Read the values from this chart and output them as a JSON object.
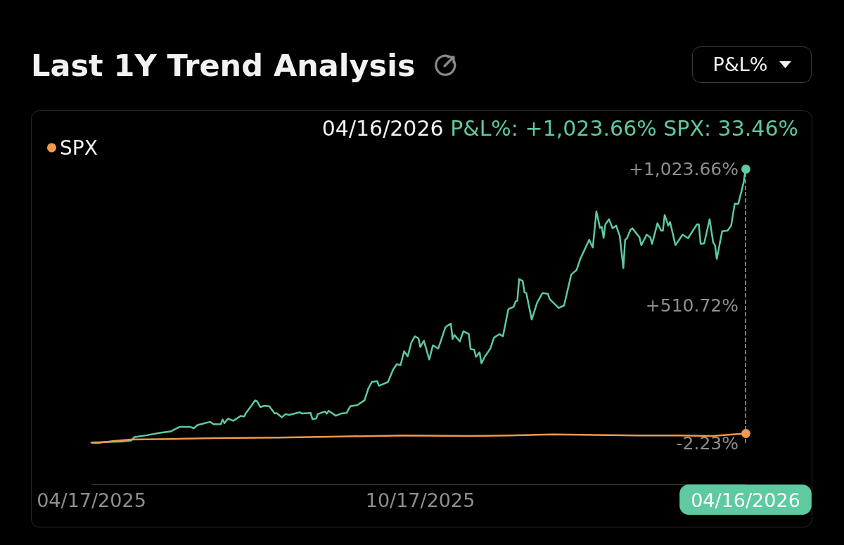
{
  "chart_data": {
    "type": "line",
    "title": "Last 1Y Trend Analysis",
    "annotations": [
      "P&L%",
      "04/16/2026",
      "P&L%: +1,023.66% SPX: 33.46%"
    ],
    "xlim": [
      "2025-04-17",
      "2026-04-16"
    ],
    "xticks": [
      {
        "value": "2025-04-17",
        "label": "04/17/2025"
      },
      {
        "value": "2025-10-17",
        "label": "10/17/2025"
      },
      {
        "value": "2026-04-16",
        "label": "04/16/2026"
      }
    ],
    "ylim": [
      -2.23,
      1023.66
    ],
    "yticks": [
      {
        "value": -2.23,
        "label": "-2.23%"
      },
      {
        "value": 510.72,
        "label": "+510.72%"
      },
      {
        "value": 1023.66,
        "label": "+1,023.66%"
      }
    ],
    "legend": "top left",
    "ref_lines": [
      {
        "axis": "x",
        "value": "2026-04-16",
        "color": "#5fc9a0",
        "line_style": "dashed"
      }
    ],
    "series": [
      {
        "color": "#5fc9a0",
        "x": [
          "2025-04-17",
          "2025-05-05",
          "2025-05-09",
          "2025-05-11",
          "2025-05-18",
          "2025-05-25",
          "2025-05-31",
          "2025-06-05",
          "2025-06-11",
          "2025-06-13",
          "2025-06-15",
          "2025-06-22",
          "2025-06-24",
          "2025-06-28",
          "2025-06-29",
          "2025-06-30",
          "2025-07-02",
          "2025-07-05",
          "2025-07-09",
          "2025-07-11",
          "2025-07-12",
          "2025-07-15",
          "2025-07-17",
          "2025-07-18",
          "2025-07-20",
          "2025-07-22",
          "2025-07-25",
          "2025-07-28",
          "2025-07-29",
          "2025-08-01",
          "2025-08-03",
          "2025-08-05",
          "2025-08-11",
          "2025-08-12",
          "2025-08-17",
          "2025-08-18",
          "2025-08-20",
          "2025-08-21",
          "2025-08-25",
          "2025-08-26",
          "2025-08-27",
          "2025-08-31",
          "2025-09-03",
          "2025-09-06",
          "2025-09-08",
          "2025-09-12",
          "2025-09-16",
          "2025-09-18",
          "2025-09-20",
          "2025-09-23",
          "2025-09-24",
          "2025-09-29",
          "2025-10-02",
          "2025-10-04",
          "2025-10-06",
          "2025-10-08",
          "2025-10-10",
          "2025-10-12",
          "2025-10-14",
          "2025-10-16",
          "2025-10-17",
          "2025-10-19",
          "2025-10-22",
          "2025-10-24",
          "2025-10-27",
          "2025-10-31",
          "2025-11-03",
          "2025-11-04",
          "2025-11-05",
          "2025-11-08",
          "2025-11-10",
          "2025-11-13",
          "2025-11-14",
          "2025-11-16",
          "2025-11-17",
          "2025-11-19",
          "2025-11-20",
          "2025-11-22",
          "2025-11-25",
          "2025-11-27",
          "2025-11-30",
          "2025-12-02",
          "2025-12-05",
          "2025-12-08",
          "2025-12-09",
          "2025-12-10",
          "2025-12-11",
          "2025-12-13",
          "2025-12-14",
          "2025-12-15",
          "2025-12-18",
          "2025-12-21",
          "2025-12-24",
          "2025-12-27",
          "2025-12-28",
          "2026-01-02",
          "2026-01-05",
          "2026-01-09",
          "2026-01-12",
          "2026-01-14",
          "2026-01-19",
          "2026-01-21",
          "2026-01-23",
          "2026-01-25",
          "2026-01-26",
          "2026-01-27",
          "2026-01-28",
          "2026-01-30",
          "2026-02-01",
          "2026-02-03",
          "2026-02-05",
          "2026-02-07",
          "2026-02-08",
          "2026-02-09",
          "2026-02-11",
          "2026-02-12",
          "2026-02-14",
          "2026-02-16",
          "2026-02-17",
          "2026-02-20",
          "2026-02-22",
          "2026-02-23",
          "2026-02-26",
          "2026-02-28",
          "2026-03-01",
          "2026-03-02",
          "2026-03-04",
          "2026-03-05",
          "2026-03-08",
          "2026-03-12",
          "2026-03-15",
          "2026-03-20",
          "2026-03-21",
          "2026-03-22",
          "2026-03-24",
          "2026-03-27",
          "2026-03-29",
          "2026-03-30",
          "2026-03-31",
          "2026-04-03",
          "2026-04-06",
          "2026-04-08",
          "2026-04-10",
          "2026-04-12",
          "2026-04-15",
          "2026-04-16"
        ],
        "values": [
          0,
          4,
          7,
          20,
          27,
          36,
          41,
          58,
          58,
          53,
          65,
          77,
          68,
          68,
          86,
          72,
          89,
          81,
          99,
          97,
          110,
          137,
          157,
          155,
          132,
          137,
          135,
          108,
          110,
          94,
          106,
          103,
          113,
          108,
          110,
          87,
          89,
          106,
          116,
          108,
          118,
          100,
          108,
          110,
          135,
          140,
          158,
          200,
          226,
          229,
          212,
          226,
          274,
          293,
          289,
          341,
          322,
          373,
          397,
          389,
          357,
          380,
          310,
          363,
          351,
          431,
          445,
          387,
          402,
          378,
          416,
          406,
          349,
          347,
          320,
          337,
          296,
          322,
          351,
          392,
          405,
          397,
          498,
          508,
          527,
          530,
          611,
          604,
          561,
          559,
          460,
          522,
          559,
          556,
          536,
          503,
          512,
          628,
          645,
          686,
          758,
          729,
          864,
          803,
          806,
          765,
          816,
          835,
          801,
          811,
          772,
          652,
          758,
          763,
          796,
          801,
          784,
          767,
          738,
          777,
          767,
          743,
          820,
          792,
          792,
          851,
          811,
          825,
          738,
          777,
          764,
          816,
          816,
          743,
          745,
          835,
          748,
          738,
          686,
          790,
          792,
          811,
          893,
          893,
          974,
          1023.66
        ]
      },
      {
        "name": "SPX",
        "color": "#f0984c",
        "x": [
          "2025-04-17",
          "2025-04-20",
          "2025-04-29",
          "2025-05-09",
          "2025-06-01",
          "2025-06-25",
          "2025-07-30",
          "2025-09-03",
          "2025-10-08",
          "2025-11-13",
          "2025-12-06",
          "2025-12-30",
          "2026-01-22",
          "2026-02-15",
          "2026-03-10",
          "2026-03-29",
          "2026-04-09",
          "2026-04-16"
        ],
        "values": [
          0,
          -2.23,
          5,
          11,
          13,
          16,
          18,
          22,
          26,
          24,
          26,
          30,
          28,
          26,
          26,
          24,
          30,
          33.46
        ]
      }
    ]
  }
}
